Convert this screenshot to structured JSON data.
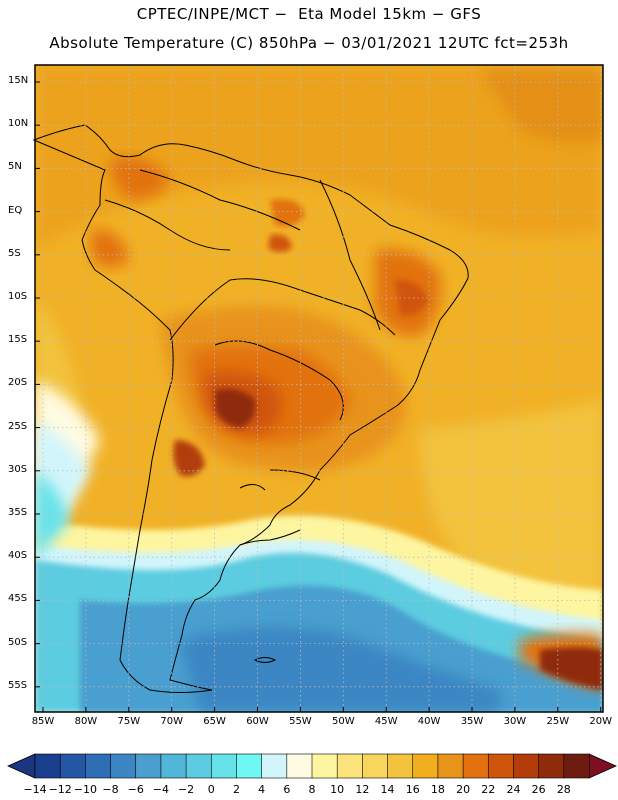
{
  "header": {
    "line1": "CPTEC/INPE/MCT −  Eta Model 15km − GFS",
    "line2": "Absolute Temperature (C) 850hPa − 03/01/2021 12UTC fct=253h"
  },
  "map": {
    "lat_labels": [
      "15N",
      "10N",
      "5N",
      "EQ",
      "5S",
      "10S",
      "15S",
      "20S",
      "25S",
      "30S",
      "35S",
      "40S",
      "45S",
      "50S",
      "55S"
    ],
    "lon_labels": [
      "85W",
      "80W",
      "75W",
      "70W",
      "65W",
      "60W",
      "55W",
      "50W",
      "45W",
      "40W",
      "35W",
      "30W",
      "25W",
      "20W"
    ]
  },
  "colorbar": {
    "labels": [
      "−14",
      "−12",
      "−10",
      "−8",
      "−6",
      "−4",
      "−2",
      "0",
      "2",
      "4",
      "6",
      "8",
      "10",
      "12",
      "14",
      "16",
      "18",
      "20",
      "22",
      "24",
      "26",
      "28"
    ],
    "colors": [
      "#1b3f8f",
      "#2456a3",
      "#2f6db5",
      "#3b86c3",
      "#4a9fcf",
      "#52b6d8",
      "#5ccce0",
      "#66e2e8",
      "#6ff7f4",
      "#d2f5fb",
      "#fffbe2",
      "#fdf5a0",
      "#fbe47b",
      "#f8d65c",
      "#f3c33d",
      "#f0ad1e",
      "#e8931a",
      "#e2720f",
      "#cf540c",
      "#b23c0a",
      "#8f2a0a",
      "#6e1c12"
    ],
    "left_arrow_color": "#1b3580",
    "right_arrow_color": "#7e0f22"
  }
}
